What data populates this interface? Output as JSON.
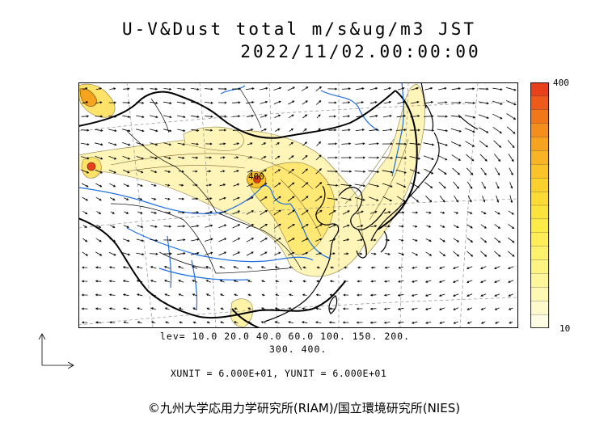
{
  "header": {
    "title_line1": "U-V&Dust total m/s&ug/m3 JST",
    "title_line2": "2022/11/02.00:00:00"
  },
  "map": {
    "map_type": "wind vector and dust concentration forecast",
    "region": "East Asia",
    "contour_label": "400",
    "colors": {
      "land_outline": "#000000",
      "river": "#1e6fe0",
      "wind_arrow": "#000000",
      "dust_low": "#fff5b8",
      "dust_mid": "#ffe55a",
      "dust_high": "#f08a1a",
      "dust_max": "#e04010"
    }
  },
  "legend": {
    "max_label": "400",
    "min_label": "10",
    "colors": [
      "#e8401a",
      "#ee5a1a",
      "#f2761a",
      "#f48e1c",
      "#f6a420",
      "#f8b424",
      "#fac428",
      "#fbd12e",
      "#fcdc34",
      "#fde43c",
      "#fdec48",
      "#feef58",
      "#fef26c",
      "#fef482",
      "#fef69a",
      "#fef8b4",
      "#fefacc",
      "#fefce2"
    ]
  },
  "footer": {
    "levels_line1": "lev= 10.0 20.0 40.0 60.0 100. 150. 200.",
    "levels_line2": "300. 400.",
    "units": "XUNIT = 6.000E+01, YUNIT = 6.000E+01",
    "copyright": "©九州大学応用力学研究所(RIAM)/国立環境研究所(NIES)"
  }
}
